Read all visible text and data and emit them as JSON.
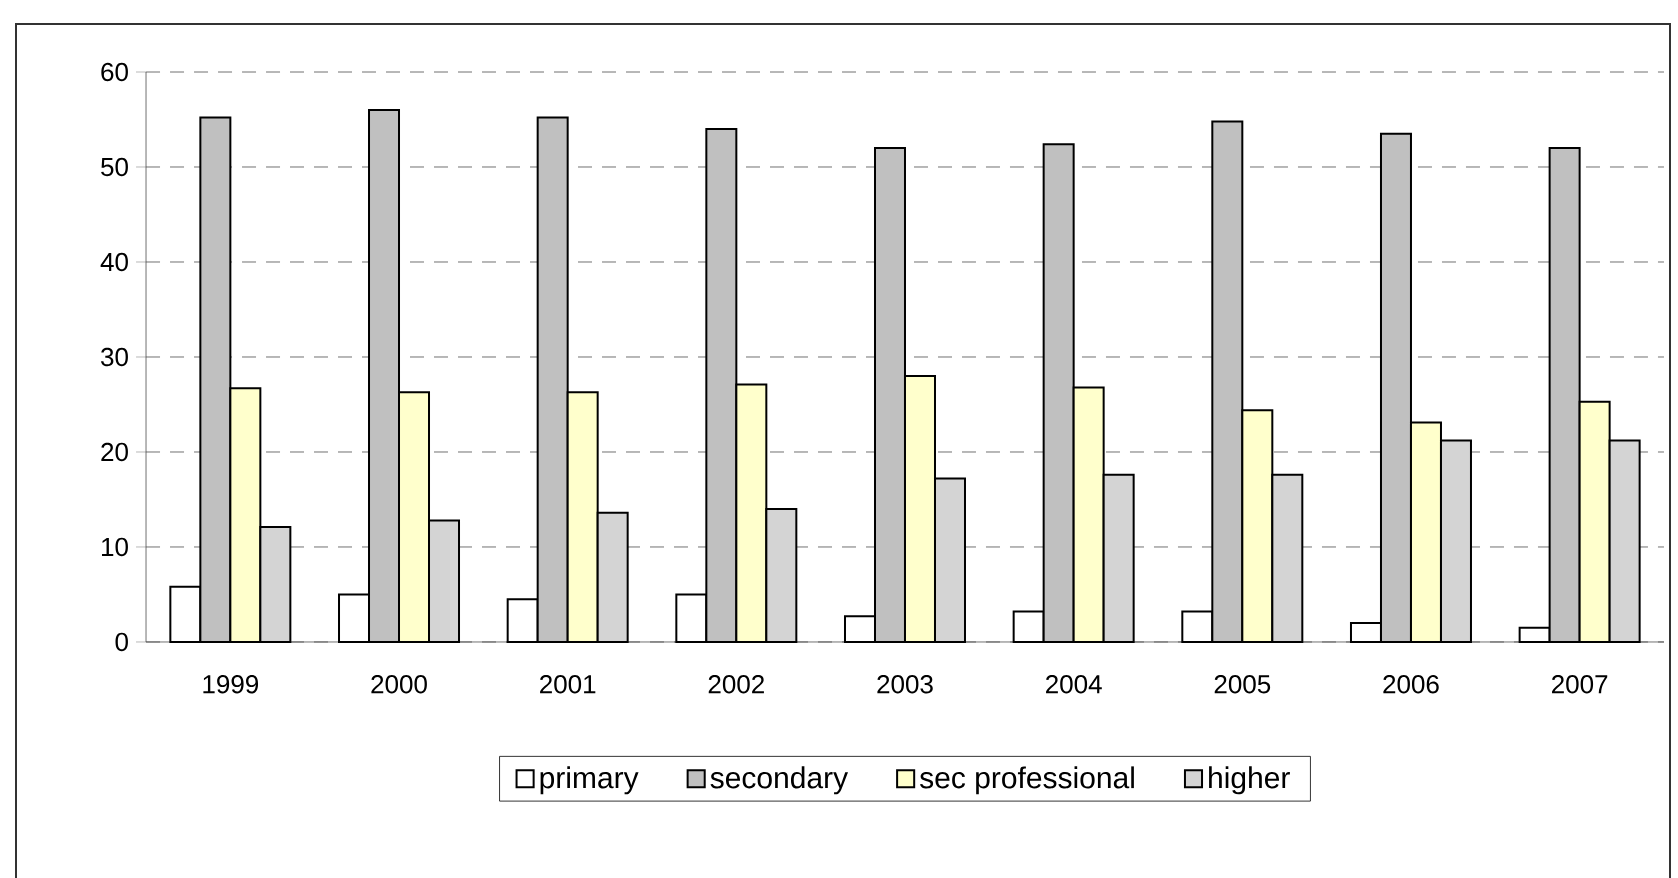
{
  "chart_data": {
    "type": "bar",
    "categories": [
      "1999",
      "2000",
      "2001",
      "2002",
      "2003",
      "2004",
      "2005",
      "2006",
      "2007"
    ],
    "series": [
      {
        "name": "primary",
        "color": "#ffffff",
        "values": [
          5.8,
          5,
          4.5,
          5,
          2.7,
          3.2,
          3.2,
          2,
          1.5
        ]
      },
      {
        "name": "secondary",
        "color": "#c0c0c0",
        "values": [
          55.2,
          56,
          55.2,
          54,
          52,
          52.4,
          54.8,
          53.5,
          52
        ]
      },
      {
        "name": "sec professional",
        "color": "#ffffcc",
        "values": [
          26.7,
          26.3,
          26.3,
          27.1,
          28,
          26.8,
          24.4,
          23.1,
          25.3
        ]
      },
      {
        "name": "higher",
        "color": "#d4d4d4",
        "values": [
          12.1,
          12.8,
          13.6,
          14,
          17.2,
          17.6,
          17.6,
          21.2,
          21.2
        ]
      }
    ],
    "ylim": [
      0,
      60
    ],
    "yticks": [
      0,
      10,
      20,
      30,
      40,
      50,
      60
    ],
    "grid": "y",
    "legend": "bottom"
  }
}
